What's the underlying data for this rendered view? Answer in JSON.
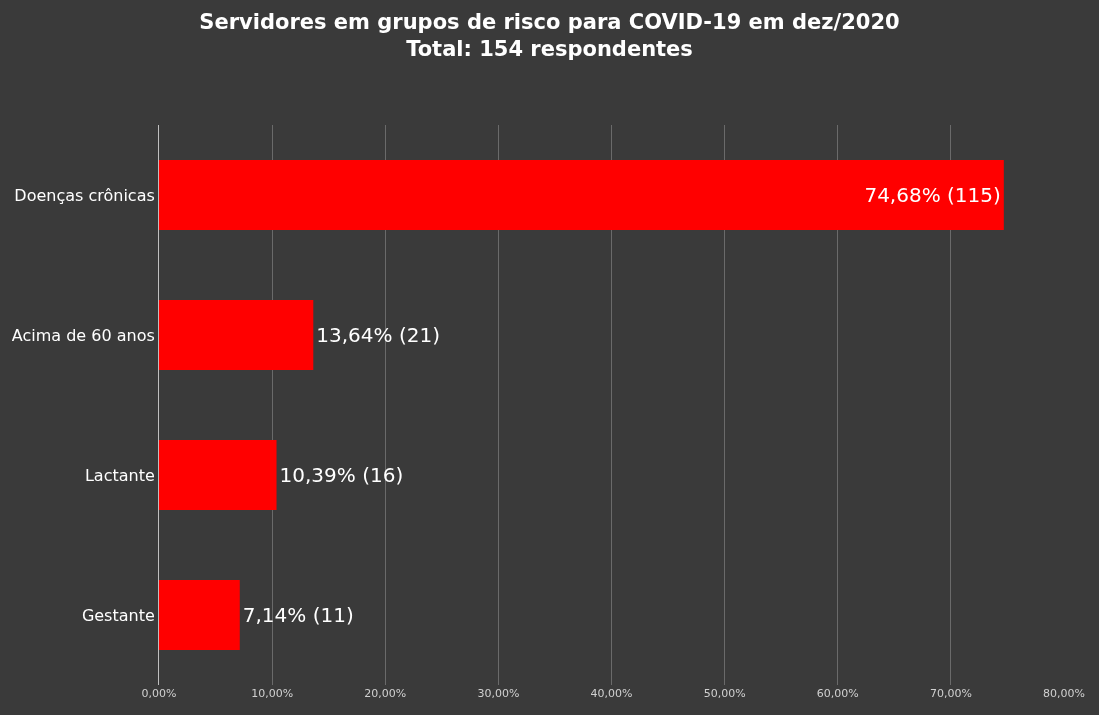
{
  "chart_data": {
    "type": "bar",
    "orientation": "horizontal",
    "title": "Servidores em grupos de risco para COVID-19 em dez/2020",
    "subtitle": "Total: 154 respondentes",
    "categories": [
      "Doenças crônicas",
      "Acima de 60 anos",
      "Lactante",
      "Gestante"
    ],
    "values": [
      74.68,
      13.64,
      10.39,
      7.14
    ],
    "value_labels": [
      "74,68% (115)",
      "13,64% (21)",
      "10,39% (16)",
      "7,14% (11)"
    ],
    "color": "#ff0000",
    "xlim": [
      0,
      80
    ],
    "xticks": [
      {
        "value": 0,
        "label": "0,00%"
      },
      {
        "value": 10,
        "label": "10,00%"
      },
      {
        "value": 20,
        "label": "20,00%"
      },
      {
        "value": 30,
        "label": "30,00%"
      },
      {
        "value": 40,
        "label": "40,00%"
      },
      {
        "value": 50,
        "label": "50,00%"
      },
      {
        "value": 60,
        "label": "60,00%"
      },
      {
        "value": 70,
        "label": "70,00%"
      },
      {
        "value": 80,
        "label": "80,00%"
      }
    ],
    "grid": "x"
  }
}
